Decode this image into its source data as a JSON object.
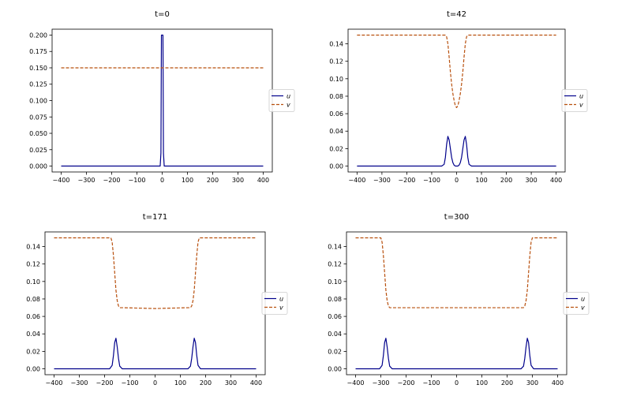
{
  "figure": {
    "u_color": "#00008b",
    "v_color": "#b8500e"
  },
  "chart_data": [
    {
      "type": "line",
      "title": "t=0",
      "xlim": [
        -400,
        400
      ],
      "ylim": [
        0,
        0.2
      ],
      "xticks": [
        "−400",
        "−300",
        "−200",
        "−100",
        "0",
        "100",
        "200",
        "300",
        "400"
      ],
      "yticks": [
        "0.000",
        "0.025",
        "0.050",
        "0.075",
        "0.100",
        "0.125",
        "0.150",
        "0.175",
        "0.200"
      ],
      "legend": [
        "u",
        "v"
      ],
      "legend_position": "center-right",
      "series": [
        {
          "name": "u",
          "style": "solid",
          "x": [
            -400,
            -8,
            -5,
            -3,
            0,
            3,
            5,
            8,
            400
          ],
          "y": [
            0,
            0,
            0.02,
            0.2,
            0.2,
            0.2,
            0.02,
            0,
            0
          ]
        },
        {
          "name": "v",
          "style": "dashed",
          "x": [
            -400,
            400
          ],
          "y": [
            0.15,
            0.15
          ]
        }
      ]
    },
    {
      "type": "line",
      "title": "t=42",
      "xlim": [
        -400,
        400
      ],
      "ylim": [
        0,
        0.15
      ],
      "xticks": [
        "−400",
        "−300",
        "−200",
        "−100",
        "0",
        "100",
        "200",
        "300",
        "400"
      ],
      "yticks": [
        "0.00",
        "0.02",
        "0.04",
        "0.06",
        "0.08",
        "0.10",
        "0.12",
        "0.14"
      ],
      "legend": [
        "u",
        "v"
      ],
      "legend_position": "center-right",
      "series": [
        {
          "name": "u",
          "style": "solid",
          "x": [
            -400,
            -60,
            -50,
            -45,
            -40,
            -35,
            -30,
            -25,
            -20,
            -15,
            -10,
            -5,
            0,
            5,
            10,
            15,
            20,
            25,
            30,
            35,
            40,
            45,
            50,
            60,
            400
          ],
          "y": [
            0,
            0,
            0.002,
            0.01,
            0.025,
            0.034,
            0.03,
            0.02,
            0.01,
            0.004,
            0.001,
            0,
            0,
            0,
            0.001,
            0.004,
            0.01,
            0.02,
            0.03,
            0.034,
            0.025,
            0.01,
            0.002,
            0,
            0
          ]
        },
        {
          "name": "v",
          "style": "dashed",
          "x": [
            -400,
            -45,
            -40,
            -35,
            -30,
            -25,
            -20,
            -15,
            -10,
            -5,
            0,
            5,
            10,
            15,
            20,
            25,
            30,
            35,
            40,
            45,
            400
          ],
          "y": [
            0.15,
            0.15,
            0.148,
            0.14,
            0.125,
            0.108,
            0.094,
            0.083,
            0.075,
            0.069,
            0.067,
            0.069,
            0.075,
            0.083,
            0.094,
            0.108,
            0.125,
            0.14,
            0.148,
            0.15,
            0.15
          ]
        }
      ]
    },
    {
      "type": "line",
      "title": "t=171",
      "xlim": [
        -400,
        400
      ],
      "ylim": [
        0,
        0.15
      ],
      "xticks": [
        "−400",
        "−300",
        "−200",
        "−100",
        "0",
        "100",
        "200",
        "300",
        "400"
      ],
      "yticks": [
        "0.00",
        "0.02",
        "0.04",
        "0.06",
        "0.08",
        "0.10",
        "0.12",
        "0.14"
      ],
      "legend": [
        "u",
        "v"
      ],
      "legend_position": "center-right",
      "series": [
        {
          "name": "u",
          "style": "solid",
          "x": [
            -400,
            -180,
            -170,
            -165,
            -160,
            -155,
            -150,
            -145,
            -140,
            -130,
            130,
            140,
            145,
            150,
            155,
            160,
            165,
            170,
            180,
            400
          ],
          "y": [
            0,
            0,
            0.004,
            0.015,
            0.03,
            0.035,
            0.025,
            0.012,
            0.003,
            0,
            0,
            0.003,
            0.012,
            0.025,
            0.035,
            0.03,
            0.015,
            0.004,
            0,
            0
          ]
        },
        {
          "name": "v",
          "style": "dashed",
          "x": [
            -400,
            -175,
            -170,
            -165,
            -160,
            -155,
            -150,
            -145,
            -140,
            -130,
            0,
            130,
            140,
            145,
            150,
            155,
            160,
            165,
            170,
            175,
            400
          ],
          "y": [
            0.15,
            0.15,
            0.145,
            0.13,
            0.11,
            0.09,
            0.078,
            0.072,
            0.07,
            0.07,
            0.069,
            0.07,
            0.07,
            0.072,
            0.078,
            0.09,
            0.11,
            0.13,
            0.145,
            0.15,
            0.15
          ]
        }
      ]
    },
    {
      "type": "line",
      "title": "t=300",
      "xlim": [
        -400,
        400
      ],
      "ylim": [
        0,
        0.15
      ],
      "xticks": [
        "−400",
        "−300",
        "−200",
        "−100",
        "0",
        "100",
        "200",
        "300",
        "400"
      ],
      "yticks": [
        "0.00",
        "0.02",
        "0.04",
        "0.06",
        "0.08",
        "0.10",
        "0.12",
        "0.14"
      ],
      "legend": [
        "u",
        "v"
      ],
      "legend_position": "center-right",
      "series": [
        {
          "name": "u",
          "style": "solid",
          "x": [
            -400,
            -305,
            -295,
            -290,
            -285,
            -280,
            -275,
            -270,
            -265,
            -255,
            255,
            265,
            270,
            275,
            280,
            285,
            290,
            295,
            305,
            400
          ],
          "y": [
            0,
            0,
            0.004,
            0.015,
            0.03,
            0.035,
            0.025,
            0.012,
            0.003,
            0,
            0,
            0.003,
            0.012,
            0.025,
            0.035,
            0.03,
            0.015,
            0.004,
            0,
            0
          ]
        },
        {
          "name": "v",
          "style": "dashed",
          "x": [
            -400,
            -300,
            -295,
            -290,
            -285,
            -280,
            -275,
            -270,
            -265,
            -255,
            255,
            265,
            270,
            275,
            280,
            285,
            290,
            295,
            300,
            400
          ],
          "y": [
            0.15,
            0.15,
            0.145,
            0.13,
            0.11,
            0.09,
            0.078,
            0.072,
            0.07,
            0.07,
            0.07,
            0.07,
            0.072,
            0.078,
            0.09,
            0.11,
            0.13,
            0.145,
            0.15,
            0.15
          ]
        }
      ]
    }
  ]
}
